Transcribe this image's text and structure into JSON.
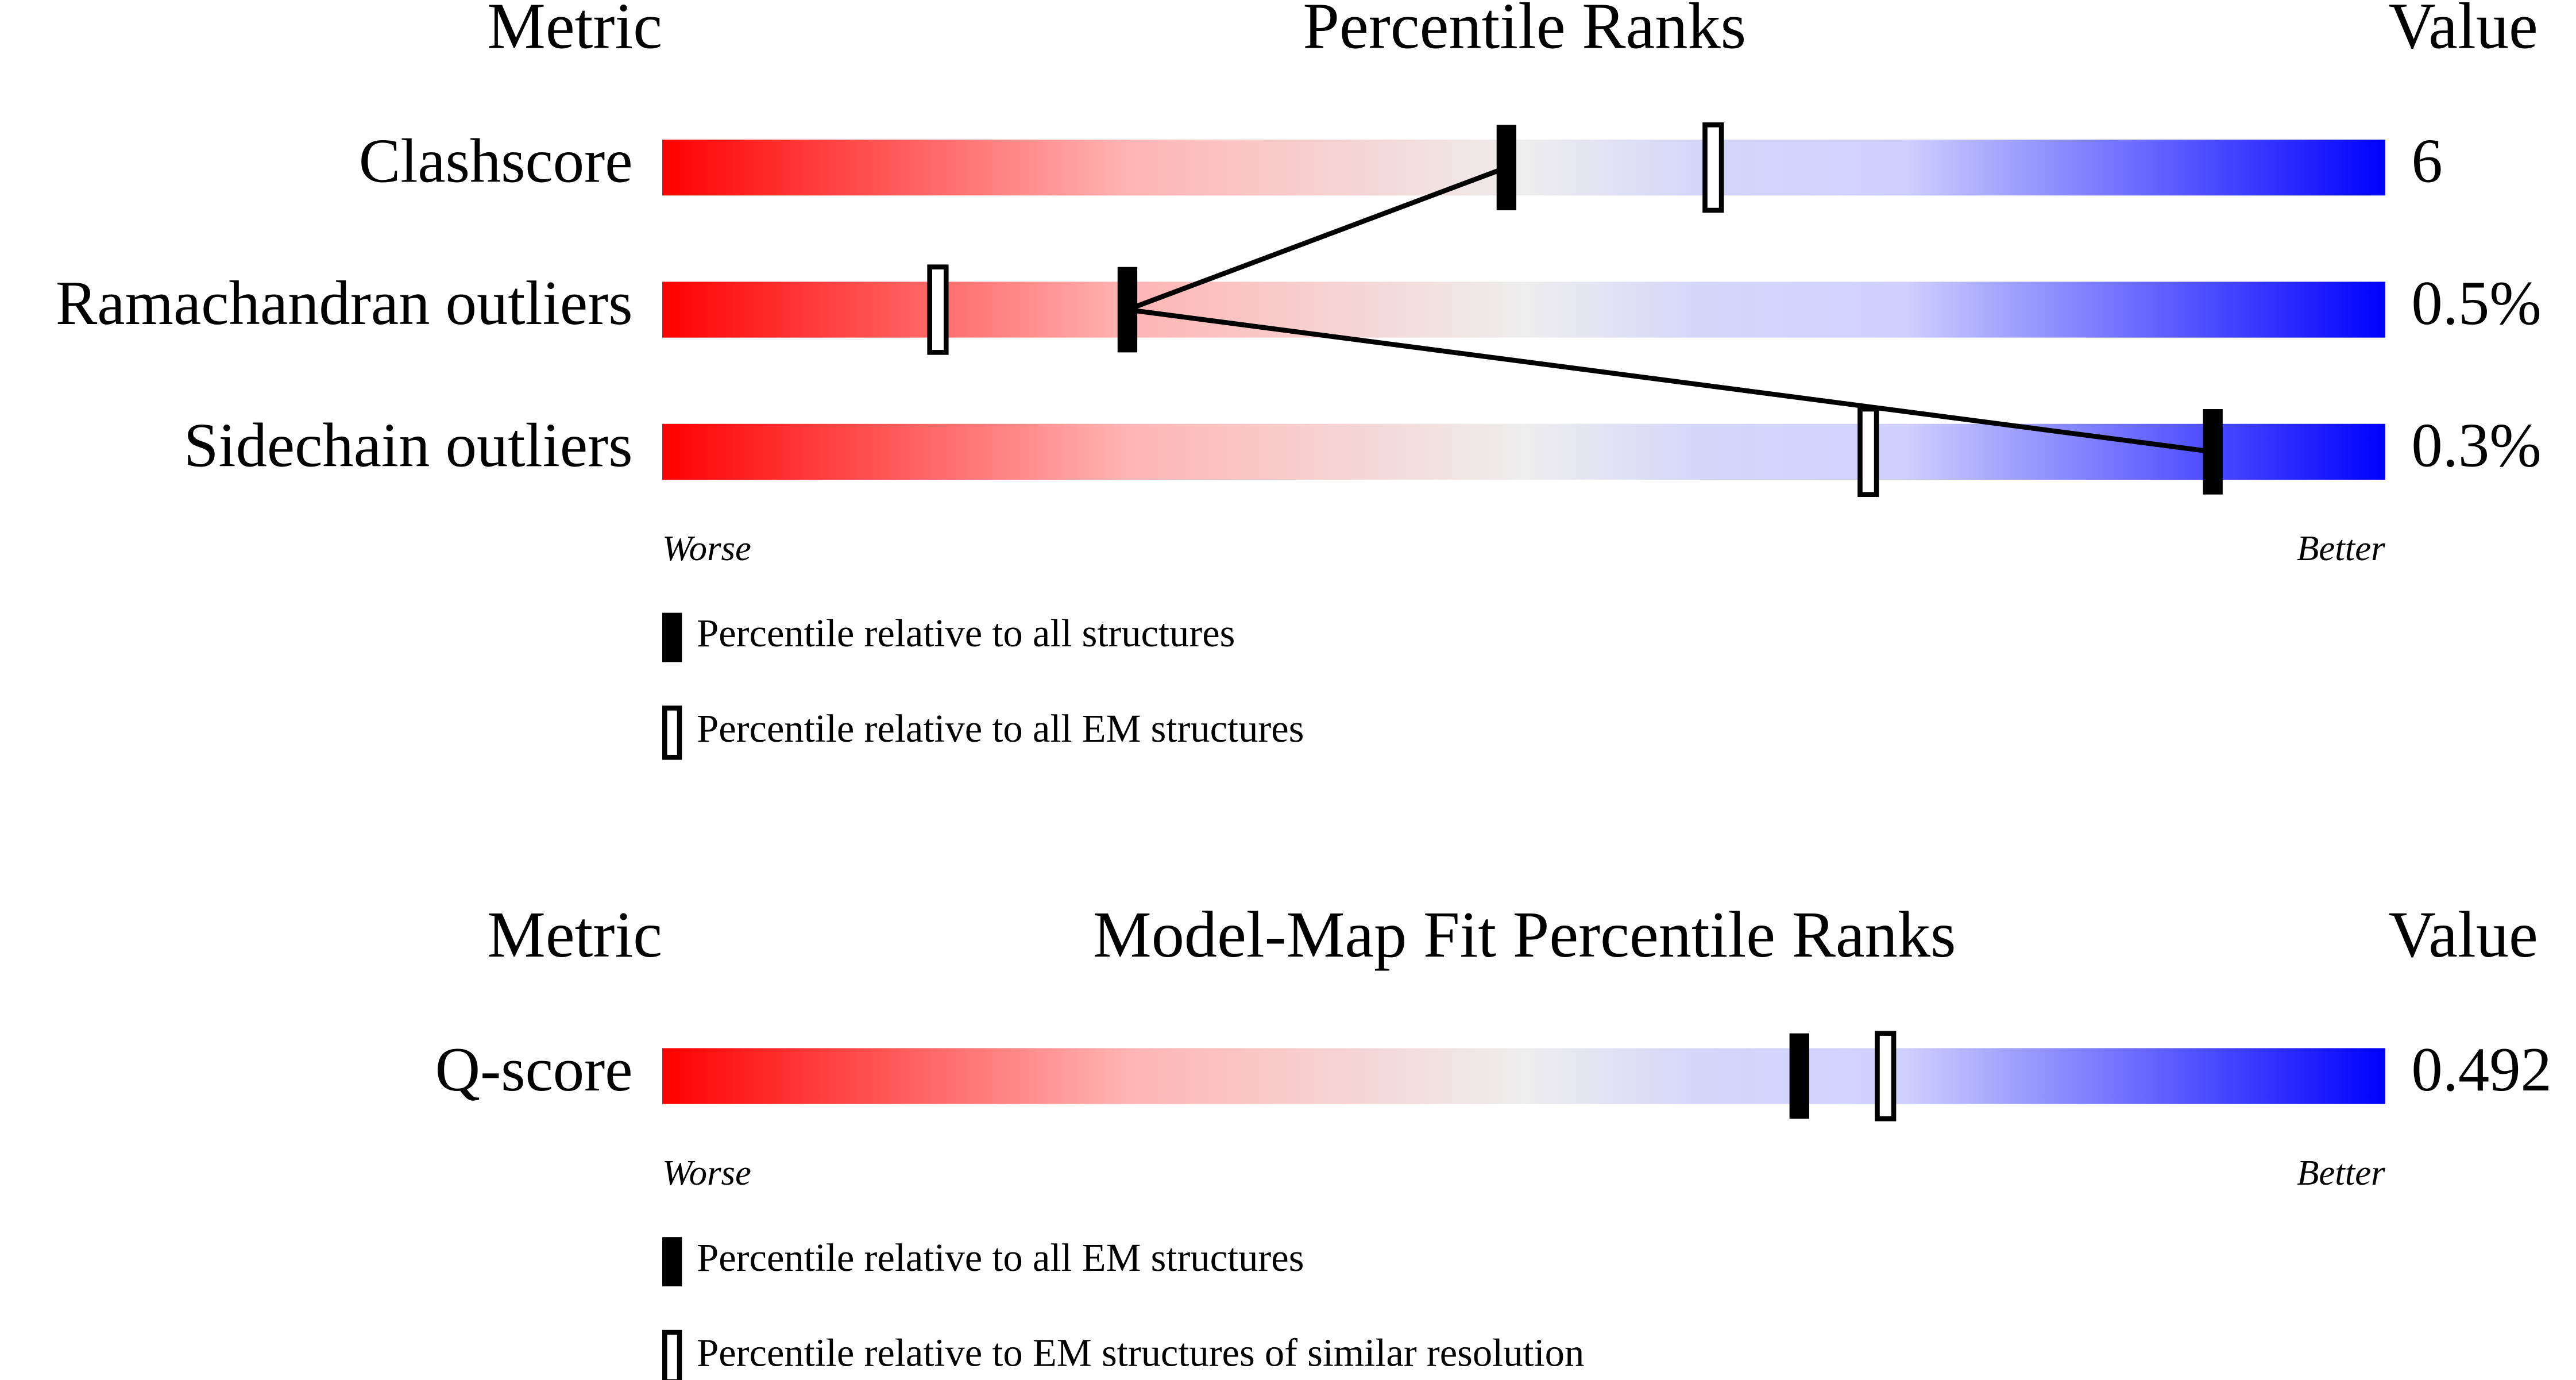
{
  "chart_data": [
    {
      "type": "percentile",
      "metric_header": "Metric",
      "title": "Percentile Ranks",
      "value_header": "Value",
      "categories": [
        "Clashscore",
        "Ramachandran outliers",
        "Sidechain outliers"
      ],
      "metric_values": [
        "6",
        "0.5%",
        "0.3%"
      ],
      "xlim": [
        0,
        100
      ],
      "worse_label": "Worse",
      "better_label": "Better",
      "series": [
        {
          "name": "Percentile relative to all structures",
          "filled": true,
          "connected": true,
          "color": "#000000",
          "values": [
            49,
            27,
            90
          ]
        },
        {
          "name": "Percentile relative to all EM structures",
          "filled": false,
          "connected": false,
          "color": "#000000",
          "values": [
            61,
            16,
            70
          ]
        }
      ]
    },
    {
      "type": "percentile",
      "metric_header": "Metric",
      "title": "Model-Map Fit Percentile Ranks",
      "value_header": "Value",
      "categories": [
        "Q-score"
      ],
      "metric_values": [
        "0.492"
      ],
      "xlim": [
        0,
        100
      ],
      "worse_label": "Worse",
      "better_label": "Better",
      "series": [
        {
          "name": "Percentile relative to all EM structures",
          "filled": true,
          "connected": false,
          "color": "#000000",
          "values": [
            66
          ]
        },
        {
          "name": "Percentile relative to EM structures of similar resolution",
          "filled": false,
          "connected": false,
          "color": "#000000",
          "values": [
            71
          ]
        }
      ]
    }
  ]
}
